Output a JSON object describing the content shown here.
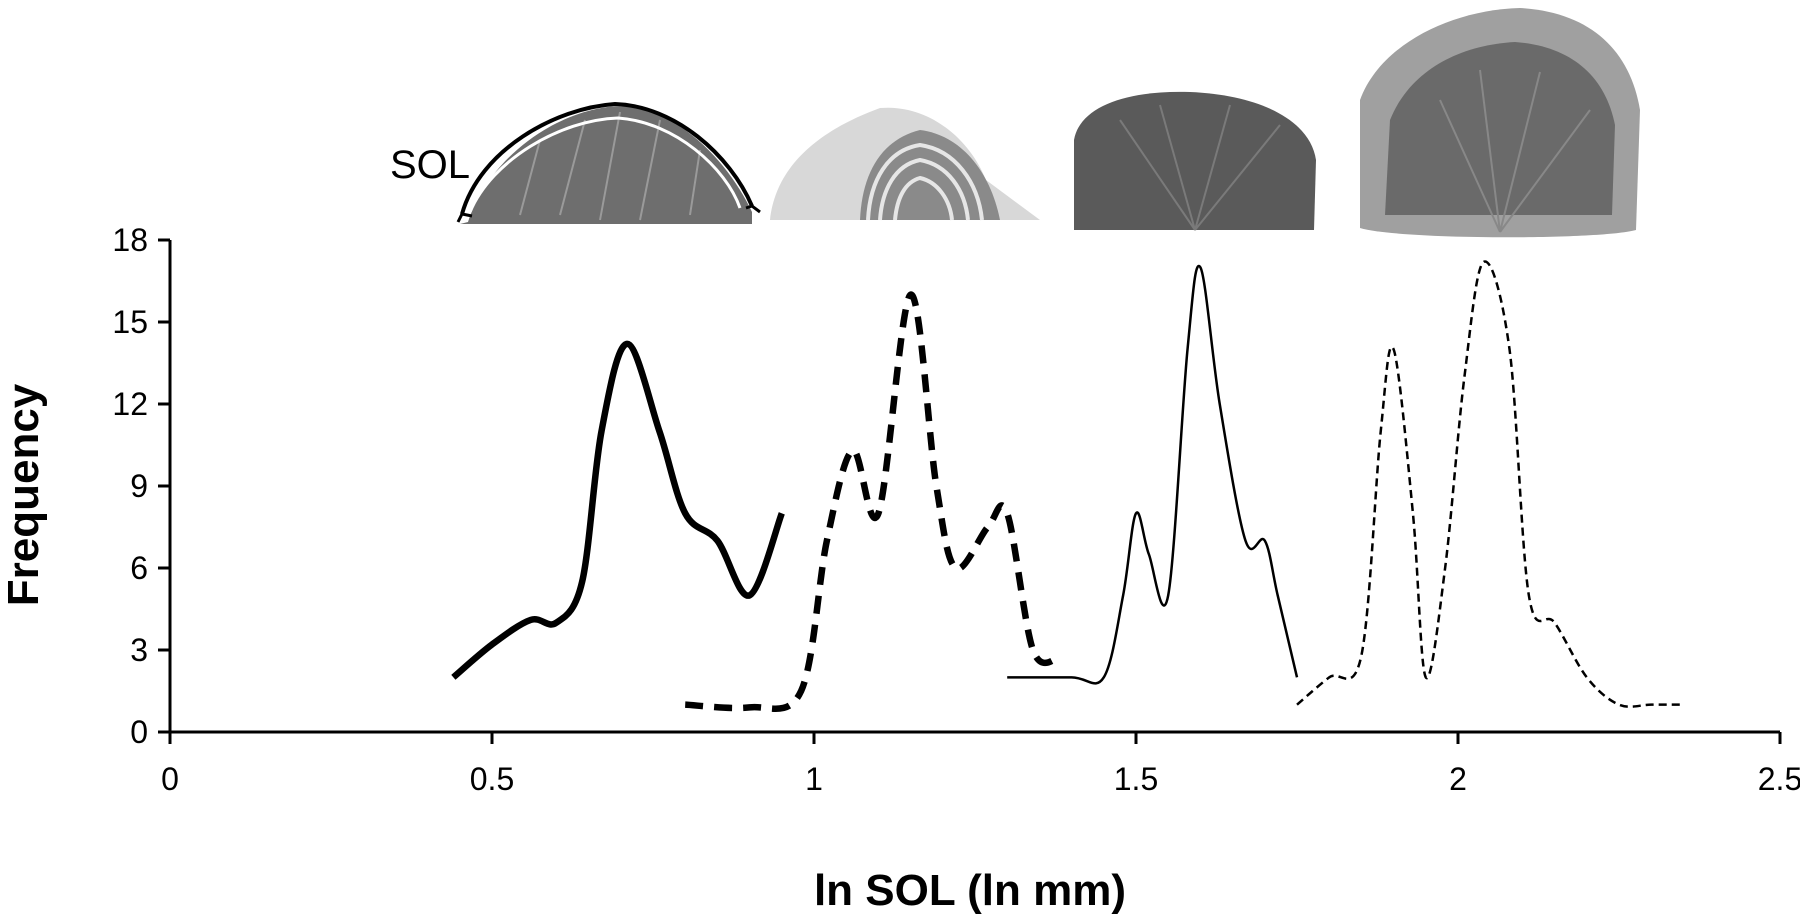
{
  "chart_data": {
    "type": "line",
    "title": "",
    "xlabel": "ln SOL (ln mm)",
    "ylabel": "Frequency",
    "xlim": [
      0,
      2.5
    ],
    "ylim": [
      0,
      18
    ],
    "x_ticks": [
      0,
      0.5,
      1,
      1.5,
      2,
      2.5
    ],
    "x_tick_labels": [
      "0",
      "0.5",
      "1",
      "1.5",
      "2",
      "2.5"
    ],
    "y_ticks": [
      0,
      3,
      6,
      9,
      12,
      15,
      18
    ],
    "y_tick_labels": [
      "0",
      "3",
      "6",
      "9",
      "12",
      "15",
      "18"
    ],
    "grid": false,
    "legend": "none",
    "annotation": "SOL",
    "series": [
      {
        "style": "thick-solid",
        "x": [
          0.44,
          0.5,
          0.56,
          0.6,
          0.64,
          0.67,
          0.71,
          0.76,
          0.8,
          0.85,
          0.9,
          0.95
        ],
        "y": [
          2,
          3.2,
          4.1,
          4.0,
          5.5,
          11,
          14.2,
          11,
          8,
          7,
          5,
          8
        ]
      },
      {
        "style": "thick-dashed",
        "x": [
          0.8,
          0.9,
          0.98,
          1.02,
          1.06,
          1.1,
          1.15,
          1.19,
          1.22,
          1.27,
          1.3,
          1.34,
          1.38
        ],
        "y": [
          1,
          0.9,
          1.5,
          7,
          10.3,
          8,
          16,
          9,
          6,
          7.5,
          8,
          3,
          2.7
        ]
      },
      {
        "style": "thin-solid",
        "x": [
          1.3,
          1.4,
          1.45,
          1.48,
          1.5,
          1.52,
          1.55,
          1.58,
          1.6,
          1.63,
          1.67,
          1.7,
          1.72,
          1.75
        ],
        "y": [
          2,
          2,
          2,
          5,
          8,
          6.5,
          5,
          14,
          17,
          12,
          7,
          7,
          5,
          2
        ]
      },
      {
        "style": "thin-dashed",
        "x": [
          1.75,
          1.8,
          1.85,
          1.88,
          1.9,
          1.93,
          1.95,
          1.98,
          2.01,
          2.04,
          2.08,
          2.11,
          2.15,
          2.2,
          2.25,
          2.3,
          2.35
        ],
        "y": [
          1,
          2,
          2.8,
          11,
          14,
          8,
          2,
          6,
          13,
          17.2,
          14,
          5,
          4,
          2,
          1,
          1,
          1
        ]
      }
    ]
  }
}
